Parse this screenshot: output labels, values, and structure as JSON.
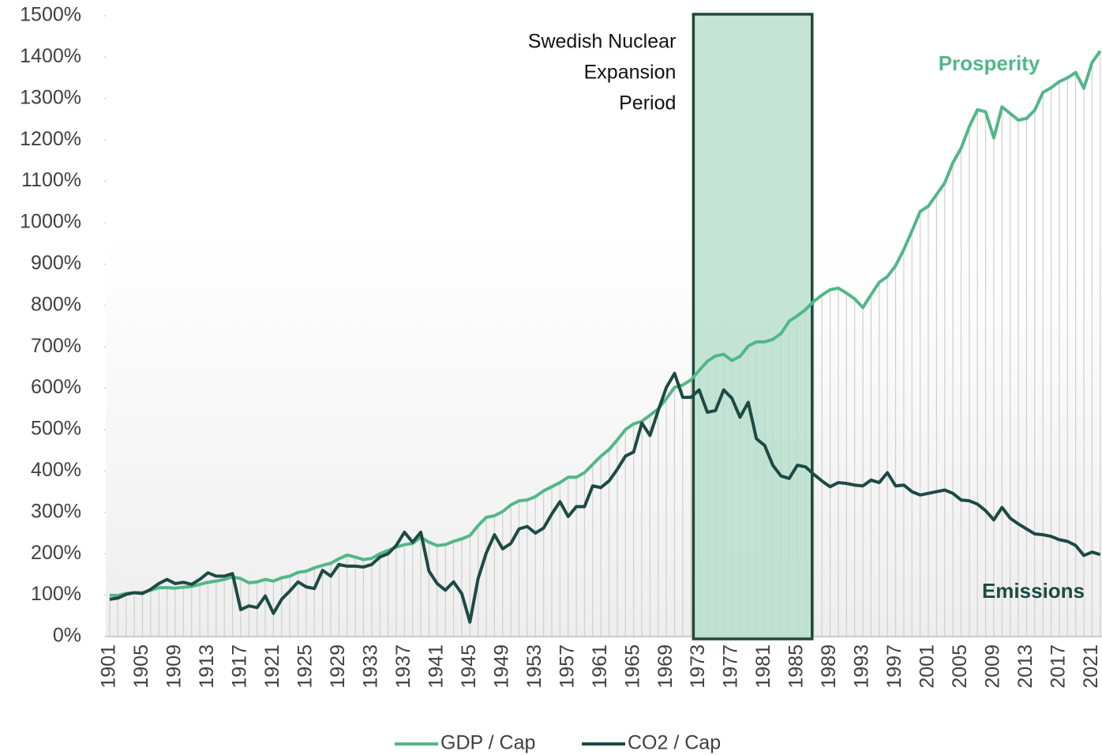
{
  "chart_data": {
    "type": "line",
    "categories": [
      "1901",
      null,
      null,
      null,
      "1905",
      null,
      null,
      null,
      "1909",
      null,
      null,
      null,
      "1913",
      null,
      null,
      null,
      "1917",
      null,
      null,
      null,
      "1921",
      null,
      null,
      null,
      "1925",
      null,
      null,
      null,
      "1929",
      null,
      null,
      null,
      "1933",
      null,
      null,
      null,
      "1937",
      null,
      null,
      null,
      "1941",
      null,
      null,
      null,
      "1945",
      null,
      null,
      null,
      "1949",
      null,
      null,
      null,
      "1953",
      null,
      null,
      null,
      "1957",
      null,
      null,
      null,
      "1961",
      null,
      null,
      null,
      "1965",
      null,
      null,
      null,
      "1969",
      null,
      null,
      null,
      "1973",
      null,
      null,
      null,
      "1977",
      null,
      null,
      null,
      "1981",
      null,
      null,
      null,
      "1985",
      null,
      null,
      null,
      "1989",
      null,
      null,
      null,
      "1993",
      null,
      null,
      null,
      "1997",
      null,
      null,
      null,
      "2001",
      null,
      null,
      null,
      "2005",
      null,
      null,
      null,
      "2009",
      null,
      null,
      null,
      "2013",
      null,
      null,
      null,
      "2017",
      null,
      null,
      null,
      "2021",
      null
    ],
    "series": [
      {
        "name": "GDP / Cap",
        "color": "#52b788",
        "values": [
          100,
          99,
          104,
          106,
          106,
          112,
          118,
          118,
          117,
          119,
          121,
          126,
          131,
          134,
          138,
          144,
          140,
          130,
          132,
          138,
          134,
          142,
          146,
          155,
          158,
          166,
          172,
          177,
          188,
          197,
          192,
          186,
          189,
          200,
          208,
          216,
          222,
          225,
          240,
          228,
          220,
          222,
          230,
          236,
          244,
          268,
          288,
          292,
          302,
          318,
          328,
          330,
          338,
          352,
          362,
          372,
          385,
          385,
          396,
          416,
          436,
          452,
          475,
          500,
          514,
          520,
          535,
          550,
          575,
          602,
          608,
          620,
          643,
          665,
          678,
          682,
          667,
          677,
          702,
          712,
          712,
          718,
          732,
          762,
          775,
          790,
          810,
          825,
          838,
          842,
          830,
          816,
          795,
          826,
          856,
          870,
          896,
          935,
          980,
          1027,
          1040,
          1068,
          1096,
          1145,
          1180,
          1232,
          1273,
          1268,
          1205,
          1280,
          1264,
          1248,
          1252,
          1272,
          1315,
          1326,
          1341,
          1350,
          1363,
          1325,
          1387,
          1415
        ]
      },
      {
        "name": "CO2 / Cap",
        "color": "#1d4a44",
        "values": [
          90,
          93,
          102,
          106,
          104,
          114,
          128,
          138,
          128,
          131,
          126,
          138,
          154,
          146,
          146,
          152,
          65,
          74,
          70,
          98,
          56,
          90,
          110,
          132,
          120,
          116,
          160,
          146,
          174,
          170,
          170,
          168,
          174,
          192,
          200,
          220,
          252,
          228,
          252,
          158,
          128,
          112,
          132,
          104,
          35,
          140,
          202,
          246,
          212,
          225,
          260,
          266,
          250,
          262,
          296,
          326,
          290,
          314,
          314,
          364,
          360,
          376,
          404,
          436,
          446,
          516,
          486,
          546,
          602,
          636,
          578,
          578,
          596,
          542,
          546,
          596,
          576,
          530,
          566,
          478,
          462,
          414,
          388,
          382,
          414,
          410,
          392,
          376,
          362,
          372,
          370,
          366,
          364,
          378,
          372,
          396,
          364,
          366,
          350,
          342,
          346,
          350,
          354,
          346,
          330,
          328,
          320,
          304,
          282,
          312,
          286,
          272,
          260,
          248,
          246,
          242,
          234,
          230,
          220,
          196,
          204,
          198
        ]
      }
    ],
    "ylim": [
      0,
      1500
    ],
    "yticks": [
      {
        "value": 0,
        "label": "0%"
      },
      {
        "value": 100,
        "label": "100%"
      },
      {
        "value": 200,
        "label": "200%"
      },
      {
        "value": 300,
        "label": "300%"
      },
      {
        "value": 400,
        "label": "400%"
      },
      {
        "value": 500,
        "label": "500%"
      },
      {
        "value": 600,
        "label": "600%"
      },
      {
        "value": 700,
        "label": "700%"
      },
      {
        "value": 800,
        "label": "800%"
      },
      {
        "value": 900,
        "label": "900%"
      },
      {
        "value": 1000,
        "label": "1000%"
      },
      {
        "value": 1100,
        "label": "1100%"
      },
      {
        "value": 1200,
        "label": "1200%"
      },
      {
        "value": 1300,
        "label": "1300%"
      },
      {
        "value": 1400,
        "label": "1400%"
      },
      {
        "value": 1500,
        "label": "1500%"
      }
    ],
    "highlight": {
      "label": [
        "Swedish Nuclear",
        "Expansion",
        "Period"
      ],
      "start": 1972.3,
      "end": 1986.8,
      "color": "#b5dfca",
      "border": "#1f4a3a"
    },
    "annotations": [
      {
        "text": "Prosperity",
        "color": "#52b788"
      },
      {
        "text": "Emissions",
        "color": "#1d4a44"
      }
    ],
    "drop_lines": true,
    "legend": "bottom"
  }
}
